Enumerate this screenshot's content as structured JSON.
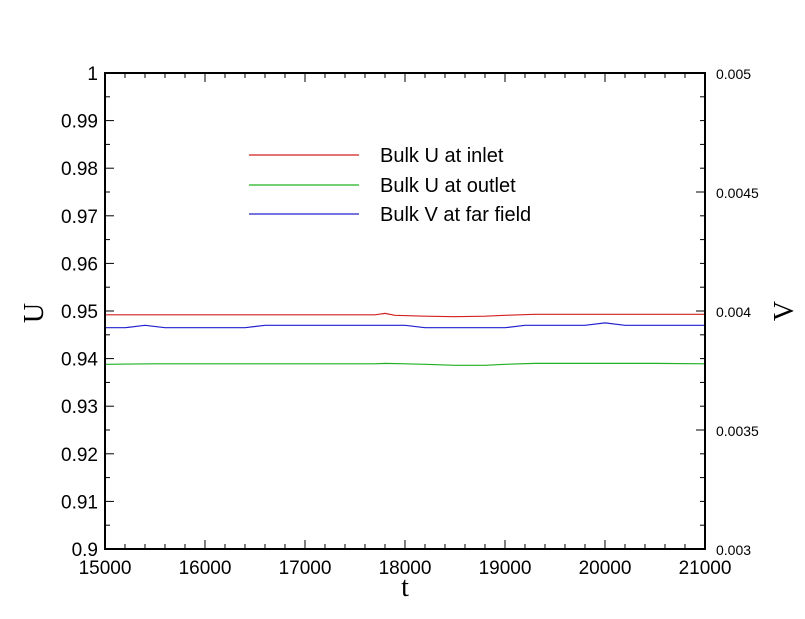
{
  "chart_data": {
    "type": "line",
    "xlabel": "t",
    "ylabel": "U",
    "y2label": "V",
    "xlim": [
      15000,
      21000
    ],
    "ylim": [
      0.9,
      1.0
    ],
    "y2lim": [
      0.003,
      0.005
    ],
    "xticks": [
      "15000",
      "16000",
      "17000",
      "18000",
      "19000",
      "20000",
      "21000"
    ],
    "yticks": [
      "0.9",
      "0.91",
      "0.92",
      "0.93",
      "0.94",
      "0.95",
      "0.96",
      "0.97",
      "0.98",
      "0.99",
      "1"
    ],
    "y2ticks": [
      "0.003",
      "0.0035",
      "0.004",
      "0.0045",
      "0.005"
    ],
    "legend_position": "upper-center",
    "grid": false,
    "series": [
      {
        "name": "Bulk U at inlet",
        "axis": "left",
        "color": "#d42020",
        "x": [
          15000,
          15500,
          16000,
          16500,
          17000,
          17500,
          17700,
          17800,
          17900,
          18200,
          18500,
          18800,
          19000,
          19300,
          19600,
          20000,
          20500,
          21000
        ],
        "y": [
          0.9492,
          0.9492,
          0.9492,
          0.9492,
          0.9492,
          0.9492,
          0.9492,
          0.9495,
          0.9491,
          0.9489,
          0.9488,
          0.9489,
          0.9491,
          0.9493,
          0.9493,
          0.9493,
          0.9493,
          0.9493
        ]
      },
      {
        "name": "Bulk U at outlet",
        "axis": "left",
        "color": "#20b020",
        "x": [
          15000,
          15500,
          16000,
          16500,
          17000,
          17500,
          17700,
          17800,
          18000,
          18200,
          18500,
          18800,
          19000,
          19300,
          19600,
          20000,
          20500,
          21000
        ],
        "y": [
          0.9388,
          0.9389,
          0.9389,
          0.9389,
          0.9389,
          0.9389,
          0.9389,
          0.939,
          0.9389,
          0.9388,
          0.9386,
          0.9386,
          0.9388,
          0.939,
          0.939,
          0.939,
          0.939,
          0.9389
        ]
      },
      {
        "name": "Bulk V at far field",
        "axis": "right",
        "color": "#2020d0",
        "x": [
          15000,
          15200,
          15400,
          15600,
          15800,
          16000,
          16200,
          16400,
          16600,
          16800,
          17000,
          17200,
          17400,
          17600,
          17800,
          18000,
          18200,
          18400,
          18600,
          18800,
          19000,
          19200,
          19400,
          19600,
          19800,
          20000,
          20200,
          20400,
          20600,
          20800,
          21000
        ],
        "y": [
          0.00393,
          0.00393,
          0.00394,
          0.00393,
          0.00393,
          0.00393,
          0.00393,
          0.00393,
          0.00394,
          0.00394,
          0.00394,
          0.00394,
          0.00394,
          0.00394,
          0.00394,
          0.00394,
          0.00393,
          0.00393,
          0.00393,
          0.00393,
          0.00393,
          0.00394,
          0.00394,
          0.00394,
          0.00394,
          0.00395,
          0.00394,
          0.00394,
          0.00394,
          0.00394,
          0.00394
        ]
      }
    ]
  }
}
